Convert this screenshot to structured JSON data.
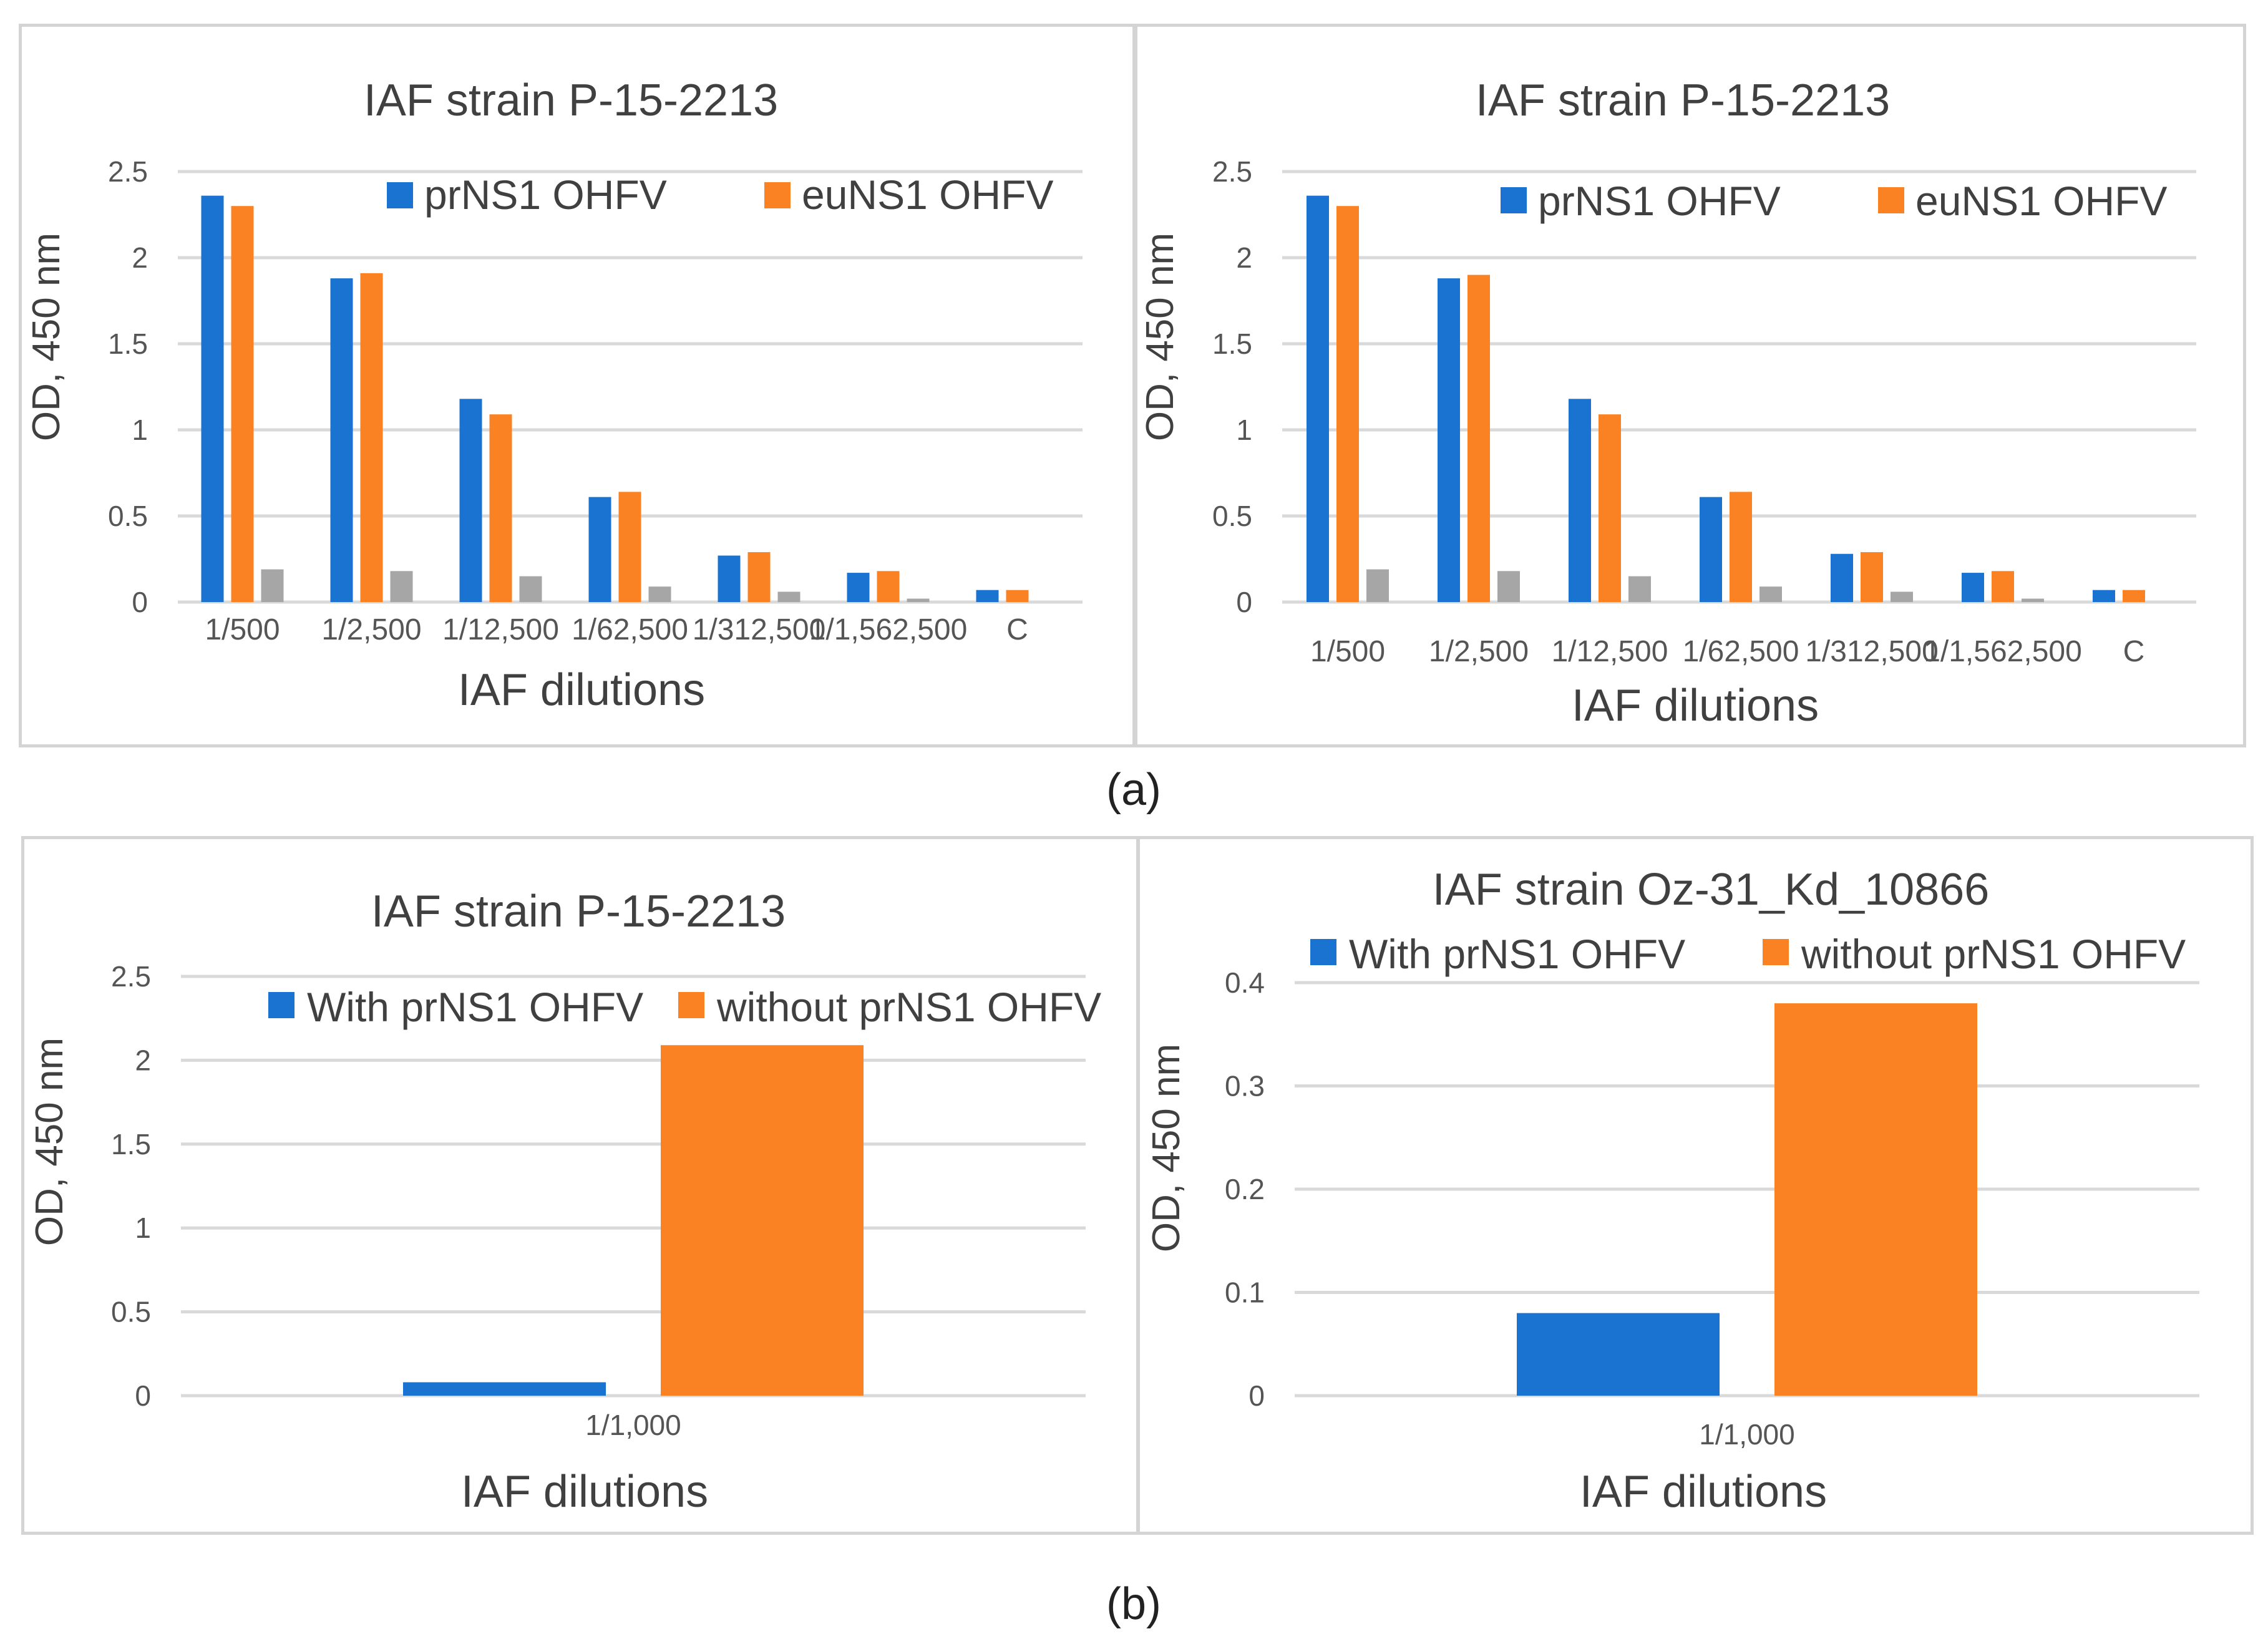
{
  "figure": {
    "caption_a": "(a)",
    "caption_b": "(b)"
  },
  "chart_data": [
    {
      "type": "bar",
      "title": "IAF strain P-15-2213",
      "xlabel": "IAF dilutions",
      "ylabel": "OD, 450 nm",
      "ylim": [
        0,
        2.5
      ],
      "yticks": [
        "0",
        "0.5",
        "1",
        "1.5",
        "2",
        "2.5"
      ],
      "categories": [
        "1/500",
        "1/2,500",
        "1/12,500",
        "1/62,500",
        "1/312,500",
        "1/1,562,500",
        "C"
      ],
      "series": [
        {
          "name": "prNS1 OHFV",
          "color": "#1a73d1",
          "values": [
            2.36,
            1.88,
            1.18,
            0.61,
            0.27,
            0.17,
            0.07
          ]
        },
        {
          "name": "euNS1 OHFV",
          "color": "#fb8222",
          "values": [
            2.3,
            1.91,
            1.09,
            0.64,
            0.29,
            0.18,
            0.07
          ]
        },
        {
          "name": "",
          "color": "#a6a6a6",
          "values": [
            0.19,
            0.18,
            0.15,
            0.09,
            0.06,
            0.02,
            0
          ]
        }
      ],
      "legend": "top-right"
    },
    {
      "type": "bar",
      "title": "IAF strain P-15-2213",
      "xlabel": "IAF dilutions",
      "ylabel": "OD, 450 nm",
      "ylim": [
        0,
        2.5
      ],
      "yticks": [
        "0",
        "0.5",
        "1",
        "1.5",
        "2",
        "2.5"
      ],
      "categories": [
        "1/500",
        "1/2,500",
        "1/12,500",
        "1/62,500",
        "1/312,500",
        "1/1,562,500",
        "C"
      ],
      "series": [
        {
          "name": "prNS1 OHFV",
          "color": "#1a73d1",
          "values": [
            2.36,
            1.88,
            1.18,
            0.61,
            0.28,
            0.17,
            0.07
          ]
        },
        {
          "name": "euNS1 OHFV",
          "color": "#fb8222",
          "values": [
            2.3,
            1.9,
            1.09,
            0.64,
            0.29,
            0.18,
            0.07
          ]
        },
        {
          "name": "",
          "color": "#a6a6a6",
          "values": [
            0.19,
            0.18,
            0.15,
            0.09,
            0.06,
            0.02,
            0
          ]
        }
      ],
      "legend": "top-right"
    },
    {
      "type": "bar",
      "title": "IAF strain P-15-2213",
      "xlabel": "IAF dilutions",
      "ylabel": "OD, 450 nm",
      "ylim": [
        0,
        2.5
      ],
      "yticks": [
        "0",
        "0.5",
        "1",
        "1.5",
        "2",
        "2.5"
      ],
      "categories": [
        "1/1,000"
      ],
      "series": [
        {
          "name": "With prNS1 OHFV",
          "color": "#1a73d1",
          "values": [
            0.08
          ]
        },
        {
          "name": "without prNS1 OHFV",
          "color": "#fb8222",
          "values": [
            2.09
          ]
        }
      ],
      "legend": "top"
    },
    {
      "type": "bar",
      "title": "IAF strain Oz-31_Kd_10866",
      "xlabel": "IAF dilutions",
      "ylabel": "OD, 450 nm",
      "ylim": [
        0,
        0.4
      ],
      "yticks": [
        "0",
        "0.1",
        "0.2",
        "0.3",
        "0.4"
      ],
      "categories": [
        "1/1,000"
      ],
      "series": [
        {
          "name": "With prNS1 OHFV",
          "color": "#1a73d1",
          "values": [
            0.08
          ]
        },
        {
          "name": "without prNS1 OHFV",
          "color": "#fb8222",
          "values": [
            0.38
          ]
        }
      ],
      "legend": "top"
    }
  ]
}
